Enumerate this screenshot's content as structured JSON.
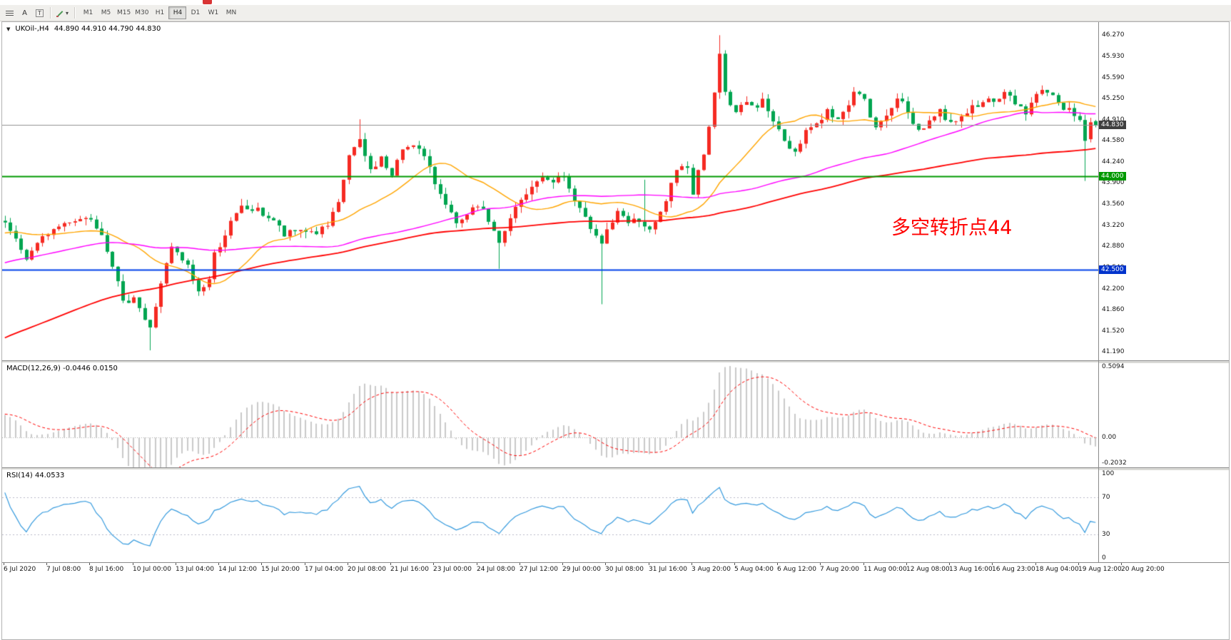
{
  "toolbar": {
    "text_tool_label": "A",
    "textbox_tool_label": "T",
    "dropdown_caret": "▾",
    "timeframes": {
      "items": [
        "M1",
        "M5",
        "M15",
        "M30",
        "H1",
        "H4",
        "D1",
        "W1",
        "MN"
      ],
      "selected": "H4"
    }
  },
  "chart": {
    "title_symbol": "UKOil-,H4",
    "title_ohlc": "44.890 44.910 44.790 44.830",
    "annotation": {
      "text": "多空转折点44",
      "color": "#FF0000"
    },
    "price_labels": [
      "46.270",
      "45.930",
      "45.590",
      "45.250",
      "44.910",
      "44.580",
      "44.240",
      "43.900",
      "43.560",
      "43.220",
      "42.880",
      "42.540",
      "42.200",
      "41.860",
      "41.520",
      "41.190"
    ],
    "time_labels": [
      "6 Jul 2020",
      "7 Jul 08:00",
      "8 Jul 16:00",
      "10 Jul 00:00",
      "13 Jul 04:00",
      "14 Jul 12:00",
      "15 Jul 20:00",
      "17 Jul 04:00",
      "20 Jul 08:00",
      "21 Jul 16:00",
      "23 Jul 00:00",
      "24 Jul 08:00",
      "27 Jul 12:00",
      "29 Jul 00:00",
      "30 Jul 08:00",
      "31 Jul 16:00",
      "3 Aug 20:00",
      "5 Aug 04:00",
      "6 Aug 12:00",
      "7 Aug 20:00",
      "11 Aug 00:00",
      "12 Aug 08:00",
      "13 Aug 16:00",
      "16 Aug 23:00",
      "18 Aug 04:00",
      "19 Aug 12:00",
      "20 Aug 20:00"
    ],
    "time_label_step": 8,
    "scale": {
      "pmax": 46.48,
      "pmin": 41.05
    },
    "levels": {
      "current": {
        "value": 44.83,
        "label": "44.830",
        "line": "#909090",
        "badge": "#3F3F3F"
      },
      "green": {
        "value": 44.0,
        "label": "44.000",
        "line": "#009900",
        "badge": "#009900"
      },
      "blue": {
        "value": 42.5,
        "label": "42.500",
        "line": "#0040E8",
        "badge": "#0033CC"
      }
    }
  },
  "macd": {
    "label": "MACD(12,26,9) -0.0446 0.0150",
    "max": 0.5094,
    "min": -0.2032,
    "labels_right": [
      {
        "text": "0.5094",
        "value": 0.5094
      },
      {
        "text": "0.00",
        "value": 0
      },
      {
        "text": "-0.2032",
        "value": -0.2032
      }
    ]
  },
  "rsi": {
    "label": "RSI(14) 44.0533",
    "levels": [
      70,
      30
    ],
    "labels_right": [
      {
        "text": "100",
        "value": 100
      },
      {
        "text": "70",
        "value": 70
      },
      {
        "text": "30",
        "value": 30
      },
      {
        "text": "0",
        "value": 0
      }
    ]
  },
  "chart_data": {
    "type": "candlestick-with-indicators",
    "symbol": "UKOil-",
    "timeframe": "H4",
    "last_ohlc": {
      "open": 44.89,
      "high": 44.91,
      "low": 44.79,
      "close": 44.83
    },
    "indicators": [
      "MACD(12,26,9)",
      "RSI(14)",
      "MA-fast(orange)",
      "MA-mid(magenta)",
      "MA-slow(red)"
    ],
    "ylim": [
      41.05,
      46.48
    ],
    "bars_visible": 204,
    "warmup_bars": 120,
    "rsi_period": 14,
    "macd_params": [
      12,
      26,
      9
    ],
    "ma_periods": {
      "orange": 20,
      "magenta": 60,
      "red": 120
    },
    "noise": {
      "seed": 7,
      "close_jitter": 0.06,
      "wick": 0.11
    },
    "close_anchors": [
      [
        -120,
        38.6
      ],
      [
        -100,
        39.6
      ],
      [
        -80,
        40.8
      ],
      [
        -60,
        41.7
      ],
      [
        -40,
        42.4
      ],
      [
        -20,
        42.9
      ],
      [
        -8,
        43.1
      ],
      [
        0,
        43.25
      ],
      [
        2,
        42.95
      ],
      [
        4,
        42.7
      ],
      [
        6,
        42.9
      ],
      [
        8,
        43.1
      ],
      [
        12,
        43.3
      ],
      [
        16,
        43.35
      ],
      [
        18,
        43.1
      ],
      [
        20,
        42.6
      ],
      [
        22,
        41.95
      ],
      [
        24,
        42.1
      ],
      [
        26,
        41.7
      ],
      [
        27,
        41.55
      ],
      [
        29,
        42.3
      ],
      [
        31,
        42.85
      ],
      [
        34,
        42.55
      ],
      [
        36,
        42.15
      ],
      [
        38,
        42.35
      ],
      [
        39,
        42.75
      ],
      [
        42,
        43.25
      ],
      [
        44,
        43.5
      ],
      [
        47,
        43.45
      ],
      [
        50,
        43.3
      ],
      [
        52,
        43.05
      ],
      [
        55,
        43.15
      ],
      [
        58,
        43.1
      ],
      [
        60,
        43.2
      ],
      [
        62,
        43.55
      ],
      [
        64,
        44.35
      ],
      [
        66,
        44.55
      ],
      [
        68,
        44.1
      ],
      [
        70,
        44.3
      ],
      [
        72,
        44.0
      ],
      [
        74,
        44.45
      ],
      [
        76,
        44.55
      ],
      [
        78,
        44.3
      ],
      [
        80,
        43.9
      ],
      [
        82,
        43.6
      ],
      [
        84,
        43.2
      ],
      [
        86,
        43.35
      ],
      [
        88,
        43.55
      ],
      [
        90,
        43.3
      ],
      [
        92,
        42.95
      ],
      [
        93,
        43.1
      ],
      [
        95,
        43.5
      ],
      [
        97,
        43.7
      ],
      [
        99,
        43.95
      ],
      [
        102,
        43.95
      ],
      [
        104,
        44.0
      ],
      [
        106,
        43.6
      ],
      [
        108,
        43.3
      ],
      [
        110,
        43.1
      ],
      [
        111,
        42.95
      ],
      [
        112,
        43.15
      ],
      [
        114,
        43.4
      ],
      [
        116,
        43.25
      ],
      [
        118,
        43.3
      ],
      [
        120,
        43.1
      ],
      [
        122,
        43.4
      ],
      [
        124,
        43.85
      ],
      [
        125,
        44.05
      ],
      [
        127,
        44.2
      ],
      [
        128,
        43.75
      ],
      [
        130,
        44.4
      ],
      [
        132,
        45.3
      ],
      [
        133,
        46.0
      ],
      [
        134,
        45.35
      ],
      [
        136,
        45.0
      ],
      [
        138,
        45.25
      ],
      [
        140,
        45.05
      ],
      [
        141,
        45.3
      ],
      [
        143,
        44.9
      ],
      [
        145,
        44.55
      ],
      [
        147,
        44.4
      ],
      [
        149,
        44.75
      ],
      [
        151,
        44.85
      ],
      [
        153,
        45.05
      ],
      [
        155,
        44.9
      ],
      [
        156,
        45.0
      ],
      [
        158,
        45.4
      ],
      [
        160,
        45.2
      ],
      [
        162,
        44.75
      ],
      [
        164,
        45.0
      ],
      [
        166,
        45.3
      ],
      [
        168,
        45.0
      ],
      [
        170,
        44.75
      ],
      [
        172,
        44.9
      ],
      [
        174,
        45.05
      ],
      [
        176,
        44.85
      ],
      [
        178,
        45.0
      ],
      [
        180,
        45.1
      ],
      [
        182,
        45.25
      ],
      [
        184,
        45.15
      ],
      [
        186,
        45.35
      ],
      [
        188,
        45.2
      ],
      [
        190,
        45.05
      ],
      [
        192,
        45.3
      ],
      [
        194,
        45.4
      ],
      [
        196,
        45.2
      ],
      [
        198,
        45.05
      ],
      [
        200,
        44.95
      ],
      [
        201,
        44.6
      ],
      [
        202,
        44.89
      ],
      [
        203,
        44.83
      ]
    ],
    "overrides": {
      "27": {
        "l": 41.21
      },
      "66": {
        "h": 44.92
      },
      "92": {
        "l": 42.52
      },
      "111": {
        "l": 41.95
      },
      "119": {
        "h": 43.95
      },
      "133": {
        "h": 46.27
      },
      "201": {
        "l": 43.93
      },
      "202": {
        "o": 44.6
      },
      "203": {
        "o": 44.89,
        "h": 44.91,
        "l": 44.79,
        "c": 44.83
      }
    },
    "colors": {
      "up": "#F52A22",
      "down": "#00A550",
      "ma_fast": "#FFA500",
      "ma_mid": "#FF00FF",
      "ma_slow": "#FF0000",
      "macd_hist": "#C9C9C9",
      "macd_signal": "#FF0000",
      "rsi": "#3399DD",
      "axis_text": "#151515"
    }
  }
}
